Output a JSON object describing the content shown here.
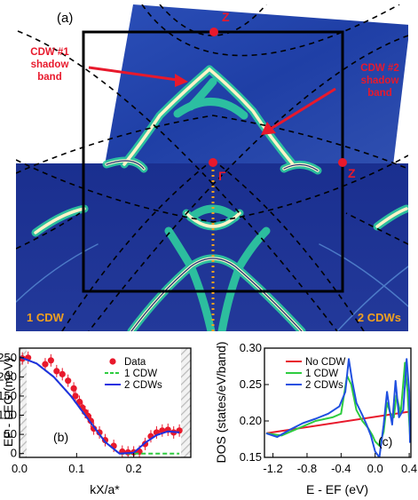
{
  "panel_a": {
    "label": "(a)",
    "annotation_cdw1": [
      "CDW #1",
      "shadow",
      "band"
    ],
    "annotation_cdw2": [
      "CDW #2",
      "shadow",
      "band"
    ],
    "point_gamma": "Γ",
    "point_z_top": "Z",
    "point_z_right": "Z",
    "label_1cdw": "1 CDW",
    "label_2cdws": "2 CDWs",
    "colors": {
      "background": "#1b3a9e",
      "band_outer": "#2fd6a0",
      "band_core": "#fff3c8",
      "dash": "#000000",
      "markers": "#e8192c",
      "orange_dots": "#f0a020",
      "arrows": "#e8192c"
    }
  },
  "chart_data": [
    {
      "type": "scatter",
      "panel": "(b)",
      "xlabel": "kX/a*",
      "ylabel": "EF - LEG (meV)",
      "xlim": [
        0.0,
        0.3
      ],
      "ylim": [
        -10,
        275
      ],
      "xticks": [
        "0.0",
        "0.1",
        "0.2"
      ],
      "yticks": [
        "0",
        "50",
        "100",
        "150",
        "200",
        "250"
      ],
      "legend_position": "top-right",
      "series": [
        {
          "name": "Data",
          "kind": "points",
          "color": "#e8192c",
          "x": [
            0.005,
            0.015,
            0.045,
            0.055,
            0.065,
            0.075,
            0.085,
            0.095,
            0.098,
            0.105,
            0.11,
            0.115,
            0.12,
            0.125,
            0.13,
            0.14,
            0.15,
            0.165,
            0.18,
            0.19,
            0.2,
            0.21,
            0.22,
            0.23,
            0.24,
            0.25,
            0.26,
            0.27,
            0.28
          ],
          "y": [
            248,
            250,
            233,
            243,
            215,
            207,
            190,
            170,
            150,
            135,
            120,
            108,
            98,
            85,
            65,
            55,
            35,
            20,
            5,
            3,
            3,
            5,
            25,
            45,
            55,
            60,
            62,
            55,
            60
          ]
        },
        {
          "name": "1 CDW",
          "kind": "dashed-line",
          "color": "#2ecc40",
          "x": [
            0.0,
            0.03,
            0.06,
            0.09,
            0.12,
            0.15,
            0.175,
            0.2,
            0.25,
            0.28
          ],
          "y": [
            252,
            235,
            200,
            150,
            90,
            30,
            0,
            0,
            0,
            0
          ]
        },
        {
          "name": "2 CDWs",
          "kind": "line",
          "color": "#2030e0",
          "x": [
            0.0,
            0.03,
            0.06,
            0.09,
            0.12,
            0.15,
            0.175,
            0.2,
            0.22,
            0.24,
            0.26,
            0.28
          ],
          "y": [
            252,
            235,
            200,
            150,
            90,
            30,
            0,
            2,
            28,
            48,
            58,
            55
          ]
        }
      ]
    },
    {
      "type": "line",
      "panel": "(c)",
      "xlabel": "E - EF (eV)",
      "ylabel": "DOS (states/eV/band)",
      "xlim": [
        -1.3,
        0.42
      ],
      "ylim": [
        0.15,
        0.3
      ],
      "xticks": [
        "-1.2",
        "-0.8",
        "-0.4",
        "0.0",
        "0.4"
      ],
      "yticks": [
        "0.15",
        "0.20",
        "0.25",
        "0.30"
      ],
      "legend_position": "top-left",
      "series": [
        {
          "name": "No CDW",
          "color": "#e8192c",
          "x": [
            -1.28,
            0.42
          ],
          "y": [
            0.183,
            0.213
          ]
        },
        {
          "name": "1 CDW",
          "color": "#2ecc40",
          "x": [
            -1.28,
            -1.1,
            -0.9,
            -0.7,
            -0.5,
            -0.4,
            -0.33,
            -0.28,
            -0.22,
            -0.15,
            -0.08,
            -0.03,
            0.0,
            0.05,
            0.1,
            0.14,
            0.18,
            0.22,
            0.25,
            0.3,
            0.35,
            0.38,
            0.41
          ],
          "y": [
            0.183,
            0.18,
            0.19,
            0.2,
            0.205,
            0.21,
            0.262,
            0.25,
            0.215,
            0.2,
            0.19,
            0.18,
            0.172,
            0.166,
            0.185,
            0.225,
            0.21,
            0.205,
            0.235,
            0.21,
            0.28,
            0.24,
            0.18
          ]
        },
        {
          "name": "2 CDWs",
          "color": "#2050e0",
          "x": [
            -1.28,
            -1.15,
            -1.0,
            -0.85,
            -0.7,
            -0.55,
            -0.42,
            -0.35,
            -0.31,
            -0.27,
            -0.22,
            -0.15,
            -0.1,
            -0.05,
            0.0,
            0.05,
            0.1,
            0.14,
            0.17,
            0.2,
            0.24,
            0.28,
            0.33,
            0.37,
            0.4,
            0.41
          ],
          "y": [
            0.183,
            0.178,
            0.188,
            0.197,
            0.203,
            0.21,
            0.22,
            0.24,
            0.285,
            0.255,
            0.225,
            0.208,
            0.195,
            0.18,
            0.158,
            0.15,
            0.195,
            0.24,
            0.215,
            0.195,
            0.255,
            0.205,
            0.215,
            0.285,
            0.24,
            0.17
          ]
        }
      ]
    }
  ]
}
